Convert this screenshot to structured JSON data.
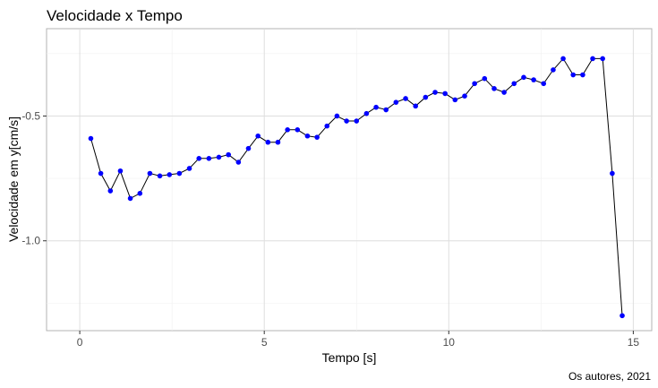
{
  "chart_data": {
    "type": "line",
    "title": "Velocidade x Tempo",
    "xlabel": "Tempo [s]",
    "ylabel": "Velocidade em y[cm/s]",
    "caption": "Os autores, 2021",
    "xlim": [
      -0.9,
      15.5
    ],
    "ylim": [
      -1.36,
      -0.15
    ],
    "xticks": [
      0,
      5,
      10,
      15
    ],
    "yticks": [
      -1.0,
      -0.5
    ],
    "ytick_labels": [
      "-1.0",
      "-0.5"
    ],
    "grid": true,
    "line_color": "#000000",
    "point_color": "#0000ff",
    "series": [
      {
        "x": [
          0.3,
          0.57,
          0.83,
          1.1,
          1.37,
          1.63,
          1.9,
          2.17,
          2.43,
          2.7,
          2.97,
          3.23,
          3.5,
          3.77,
          4.03,
          4.3,
          4.57,
          4.83,
          5.1,
          5.37,
          5.63,
          5.9,
          6.17,
          6.43,
          6.7,
          6.97,
          7.23,
          7.5,
          7.77,
          8.03,
          8.3,
          8.57,
          8.83,
          9.1,
          9.37,
          9.63,
          9.9,
          10.17,
          10.43,
          10.7,
          10.97,
          11.23,
          11.5,
          11.77,
          12.03,
          12.3,
          12.57,
          12.83,
          13.1,
          13.37,
          13.63,
          13.9,
          14.17,
          14.43,
          14.7
        ],
        "y": [
          -0.59,
          -0.73,
          -0.8,
          -0.72,
          -0.83,
          -0.81,
          -0.73,
          -0.74,
          -0.735,
          -0.73,
          -0.71,
          -0.67,
          -0.67,
          -0.665,
          -0.655,
          -0.685,
          -0.63,
          -0.58,
          -0.605,
          -0.605,
          -0.555,
          -0.555,
          -0.58,
          -0.585,
          -0.54,
          -0.5,
          -0.52,
          -0.52,
          -0.49,
          -0.465,
          -0.475,
          -0.445,
          -0.43,
          -0.46,
          -0.425,
          -0.405,
          -0.41,
          -0.435,
          -0.42,
          -0.37,
          -0.35,
          -0.39,
          -0.405,
          -0.37,
          -0.345,
          -0.355,
          -0.37,
          -0.315,
          -0.27,
          -0.335,
          -0.335,
          -0.27,
          -0.27,
          -0.73,
          -1.3
        ]
      }
    ]
  }
}
